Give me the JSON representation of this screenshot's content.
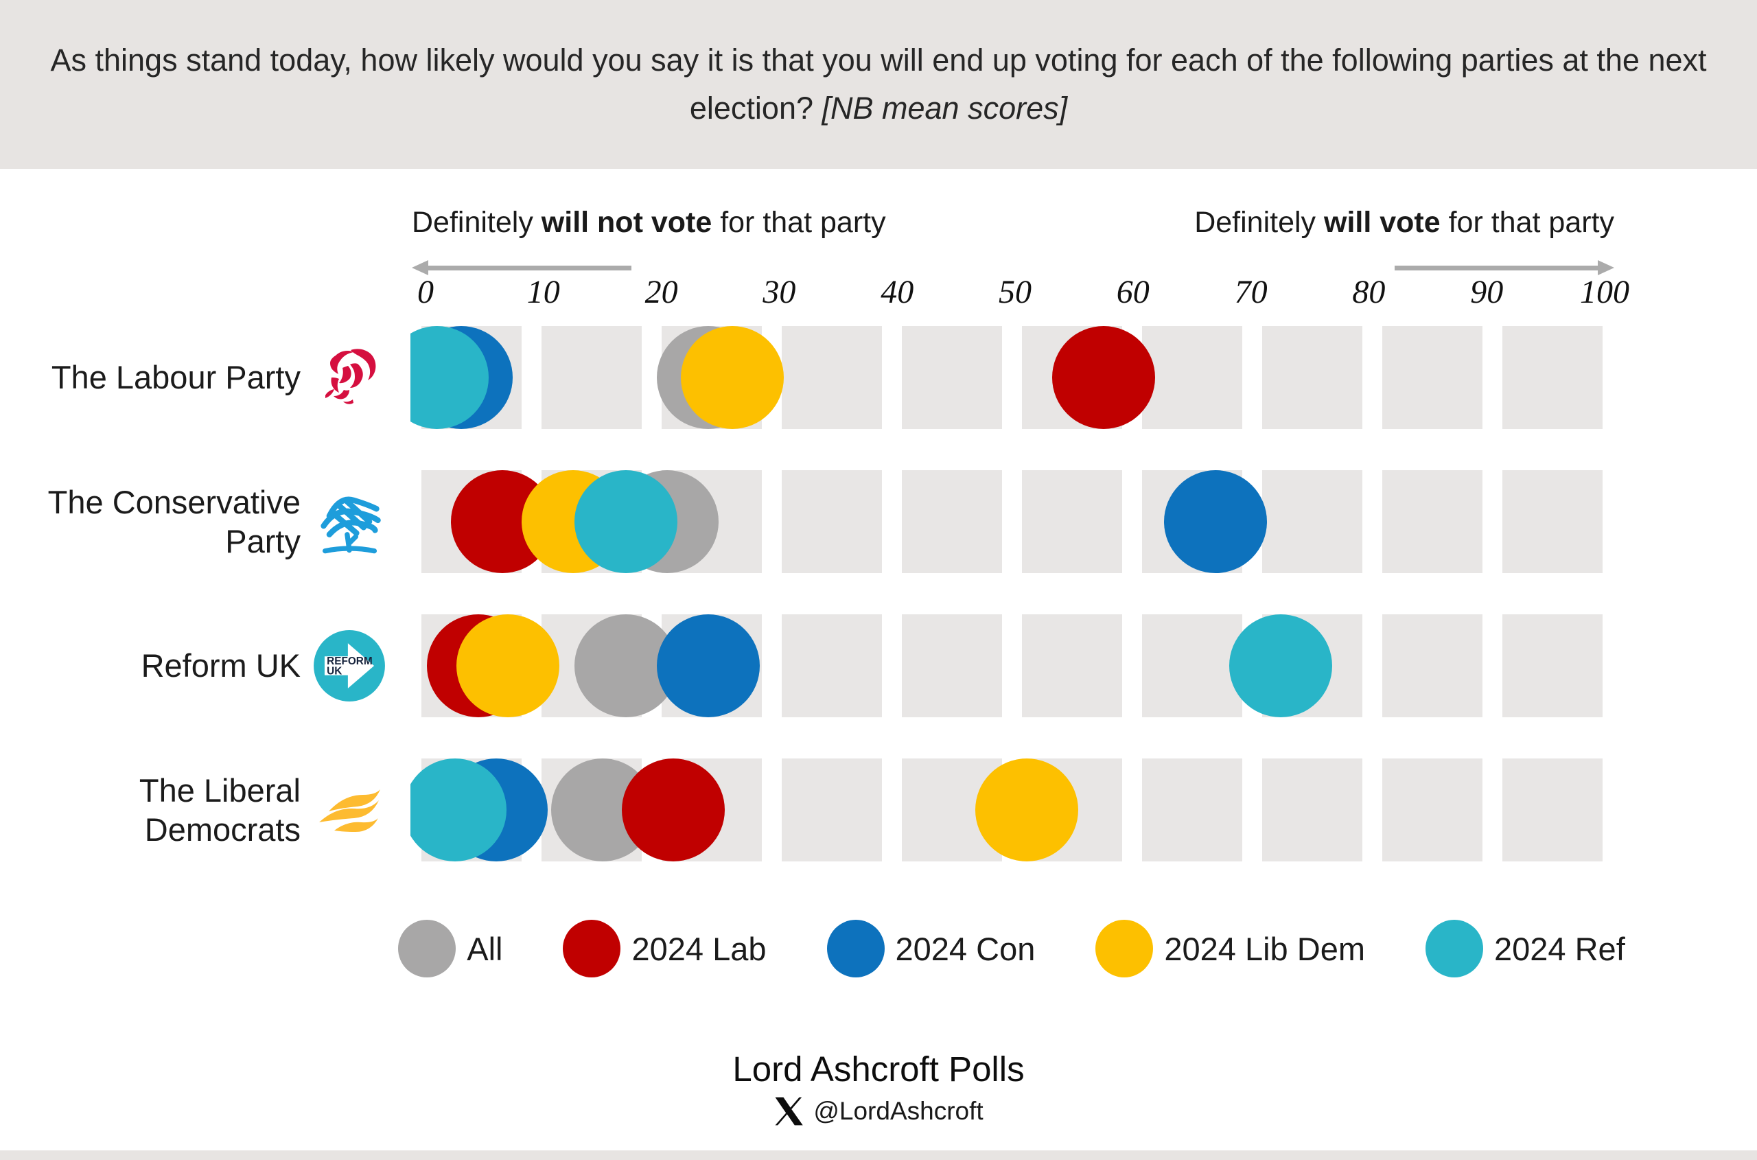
{
  "header": {
    "title_line1": "As things stand today, how likely would you say it is that you will end up voting for each of the following parties at the next",
    "title_line2_prefix": "election? ",
    "title_note": "[NB mean scores]"
  },
  "axis": {
    "left_label": {
      "prefix": "Definitely ",
      "bold": "will not vote",
      "suffix": " for that party"
    },
    "right_label": {
      "prefix": "Definitely ",
      "bold": "will vote",
      "suffix": " for that party"
    }
  },
  "chart_data": {
    "type": "scatter",
    "subtype": "dot-plot",
    "x_axis": {
      "min": 0,
      "max": 100,
      "ticks": [
        0,
        10,
        20,
        30,
        40,
        50,
        60,
        70,
        80,
        90,
        100
      ],
      "grid": "decade-bands"
    },
    "series_order": [
      "All",
      "2024 Lab",
      "2024 Con",
      "2024 Lib Dem",
      "2024 Ref"
    ],
    "colors": {
      "All": "#a8a7a7",
      "2024 Lab": "#c00000",
      "2024 Con": "#0d72bd",
      "2024 Lib Dem": "#fdc000",
      "2024 Ref": "#29b5c8"
    },
    "rows": [
      {
        "party": "The Labour Party",
        "label_lines": [
          "The Labour Party"
        ],
        "logo": "labour-rose-logo",
        "values": {
          "All": 24,
          "2024 Lab": 57.5,
          "2024 Con": 3,
          "2024 Lib Dem": 26,
          "2024 Ref": 1
        }
      },
      {
        "party": "The Conservative Party",
        "label_lines": [
          "The Conservative",
          "Party"
        ],
        "logo": "conservative-tree-logo",
        "values": {
          "All": 20.5,
          "2024 Lab": 6.5,
          "2024 Con": 67,
          "2024 Lib Dem": 12.5,
          "2024 Ref": 17
        }
      },
      {
        "party": "Reform UK",
        "label_lines": [
          "Reform UK"
        ],
        "logo": "reform-uk-logo",
        "values": {
          "All": 17,
          "2024 Lab": 4.5,
          "2024 Con": 24,
          "2024 Lib Dem": 7,
          "2024 Ref": 72.5
        }
      },
      {
        "party": "The Liberal Democrats",
        "label_lines": [
          "The Liberal",
          "Democrats"
        ],
        "logo": "libdem-bird-logo",
        "values": {
          "All": 15,
          "2024 Lab": 21,
          "2024 Con": 6,
          "2024 Lib Dem": 51,
          "2024 Ref": 2.5
        }
      }
    ]
  },
  "legend": {
    "items": [
      {
        "label": "All",
        "color": "#a8a7a7"
      },
      {
        "label": "2024 Lab",
        "color": "#c00000"
      },
      {
        "label": "2024 Con",
        "color": "#0d72bd"
      },
      {
        "label": "2024 Lib Dem",
        "color": "#fdc000"
      },
      {
        "label": "2024 Ref",
        "color": "#29b5c8"
      }
    ]
  },
  "reform_logo_text": {
    "line1": "REFORM",
    "line2": "UK"
  },
  "footer": {
    "brand": "Lord Ashcroft Polls",
    "handle": "@LordAshcroft"
  }
}
